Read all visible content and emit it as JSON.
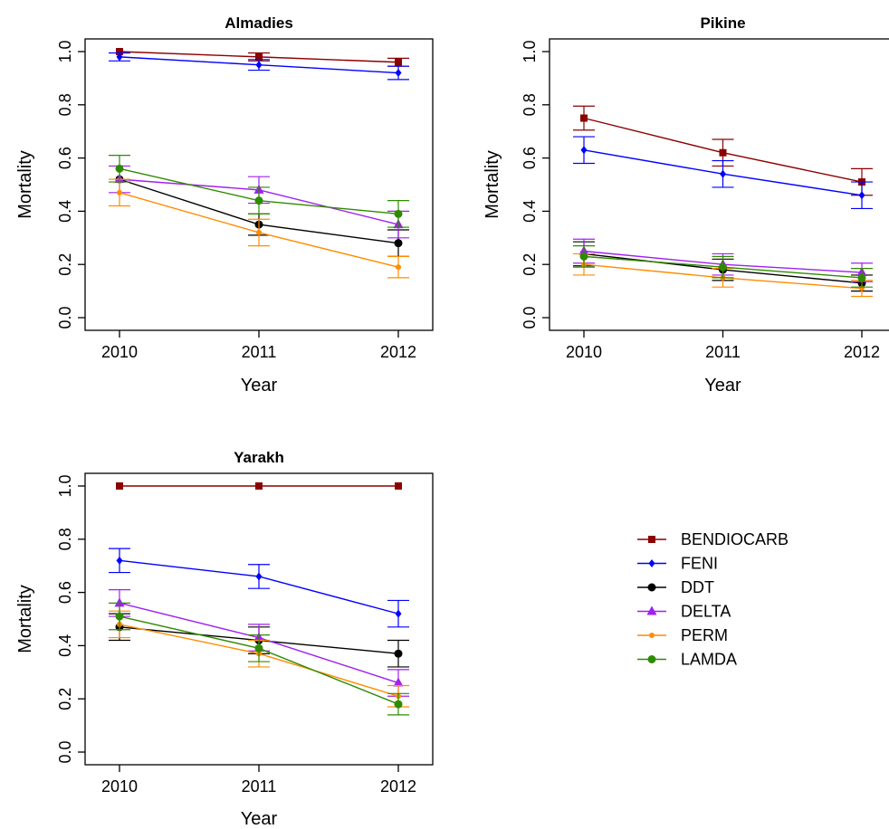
{
  "chart_data": [
    {
      "type": "line",
      "title": "Almadies",
      "xlabel": "Year",
      "ylabel": "Mortality",
      "categories": [
        "2010",
        "2011",
        "2012"
      ],
      "ylim": [
        0,
        1
      ],
      "yticks": [
        "0.0",
        "0.2",
        "0.4",
        "0.6",
        "0.8",
        "1.0"
      ],
      "series": [
        {
          "name": "BENDIOCARB",
          "values": [
            1.0,
            0.98,
            0.96
          ],
          "err": [
            0.0,
            0.015,
            0.015
          ]
        },
        {
          "name": "FENI",
          "values": [
            0.98,
            0.95,
            0.92
          ],
          "err": [
            0.015,
            0.02,
            0.025
          ]
        },
        {
          "name": "DDT",
          "values": [
            0.52,
            0.35,
            0.28
          ],
          "err": [
            0.0,
            0.04,
            0.05
          ]
        },
        {
          "name": "DELTA",
          "values": [
            0.52,
            0.48,
            0.35
          ],
          "err": [
            0.05,
            0.05,
            0.05
          ]
        },
        {
          "name": "PERM",
          "values": [
            0.47,
            0.32,
            0.19
          ],
          "err": [
            0.05,
            0.05,
            0.04
          ]
        },
        {
          "name": "LAMDA",
          "values": [
            0.56,
            0.44,
            0.39
          ],
          "err": [
            0.05,
            0.05,
            0.05
          ]
        }
      ]
    },
    {
      "type": "line",
      "title": "Pikine",
      "xlabel": "Year",
      "ylabel": "Mortality",
      "categories": [
        "2010",
        "2011",
        "2012"
      ],
      "ylim": [
        0,
        1
      ],
      "yticks": [
        "0.0",
        "0.2",
        "0.4",
        "0.6",
        "0.8",
        "1.0"
      ],
      "series": [
        {
          "name": "BENDIOCARB",
          "values": [
            0.75,
            0.62,
            0.51
          ],
          "err": [
            0.045,
            0.05,
            0.05
          ]
        },
        {
          "name": "FENI",
          "values": [
            0.63,
            0.54,
            0.46
          ],
          "err": [
            0.05,
            0.05,
            0.05
          ]
        },
        {
          "name": "DDT",
          "values": [
            0.24,
            0.18,
            0.13
          ],
          "err": [
            0.045,
            0.04,
            0.03
          ]
        },
        {
          "name": "DELTA",
          "values": [
            0.25,
            0.2,
            0.17
          ],
          "err": [
            0.045,
            0.04,
            0.035
          ]
        },
        {
          "name": "PERM",
          "values": [
            0.2,
            0.15,
            0.11
          ],
          "err": [
            0.04,
            0.035,
            0.03
          ]
        },
        {
          "name": "LAMDA",
          "values": [
            0.23,
            0.19,
            0.15
          ],
          "err": [
            0.04,
            0.04,
            0.035
          ]
        }
      ]
    },
    {
      "type": "line",
      "title": "Yarakh",
      "xlabel": "Year",
      "ylabel": "Mortality",
      "categories": [
        "2010",
        "2011",
        "2012"
      ],
      "ylim": [
        0,
        1
      ],
      "yticks": [
        "0.0",
        "0.2",
        "0.4",
        "0.6",
        "0.8",
        "1.0"
      ],
      "series": [
        {
          "name": "BENDIOCARB",
          "values": [
            1.0,
            1.0,
            1.0
          ],
          "err": [
            0,
            0,
            0
          ]
        },
        {
          "name": "FENI",
          "values": [
            0.72,
            0.66,
            0.52
          ],
          "err": [
            0.045,
            0.045,
            0.05
          ]
        },
        {
          "name": "DDT",
          "values": [
            0.47,
            0.42,
            0.37
          ],
          "err": [
            0.05,
            0.05,
            0.05
          ]
        },
        {
          "name": "DELTA",
          "values": [
            0.56,
            0.43,
            0.26
          ],
          "err": [
            0.05,
            0.05,
            0.05
          ]
        },
        {
          "name": "PERM",
          "values": [
            0.48,
            0.37,
            0.21
          ],
          "err": [
            0.05,
            0.05,
            0.04
          ]
        },
        {
          "name": "LAMDA",
          "values": [
            0.51,
            0.39,
            0.18
          ],
          "err": [
            0.05,
            0.05,
            0.04
          ]
        }
      ]
    }
  ],
  "legend": {
    "position": "bottom-right",
    "entries": [
      {
        "label": "BENDIOCARB",
        "color": "#8b0000",
        "marker": "square"
      },
      {
        "label": "FENI",
        "color": "#0000ff",
        "marker": "diamond"
      },
      {
        "label": "DDT",
        "color": "#000000",
        "marker": "circle"
      },
      {
        "label": "DELTA",
        "color": "#a020f0",
        "marker": "triangle"
      },
      {
        "label": "PERM",
        "color": "#ff8c00",
        "marker": "small-circle"
      },
      {
        "label": "LAMDA",
        "color": "#2e8b00",
        "marker": "circle"
      }
    ]
  }
}
